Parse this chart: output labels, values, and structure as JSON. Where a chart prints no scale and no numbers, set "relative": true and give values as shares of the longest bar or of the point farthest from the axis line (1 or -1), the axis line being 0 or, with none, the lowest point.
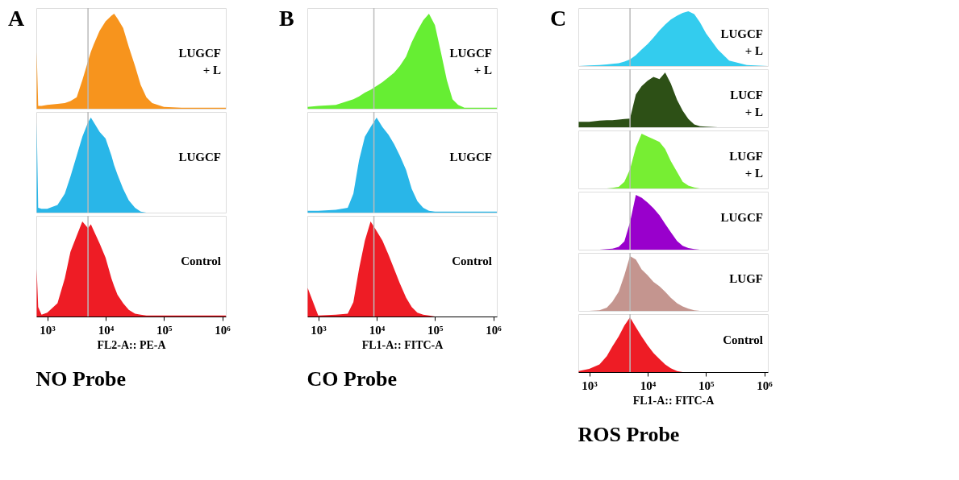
{
  "chart_data": [
    {
      "type": "area",
      "annotations": [
        "A"
      ],
      "relative": true,
      "log": "x",
      "tick_labels": false,
      "xlim": [
        650,
        1150000
      ],
      "ref_lines": [
        {
          "axis": "x",
          "value": 5000
        }
      ],
      "x": [
        660,
        700,
        800,
        1000,
        1500,
        2000,
        2500,
        3200,
        4000,
        5000,
        5600,
        6300,
        7900,
        10000,
        12600,
        14000,
        16000,
        20000,
        25000,
        32000,
        40000,
        50000,
        63000,
        100000,
        200000,
        500000,
        1000000,
        1150000
      ],
      "series": [
        {
          "name": "LUGCF + L",
          "color": "#f7941d",
          "values": [
            0.6,
            0.03,
            0.03,
            0.04,
            0.05,
            0.06,
            0.08,
            0.12,
            0.3,
            0.5,
            0.6,
            0.68,
            0.82,
            0.92,
            0.98,
            1.0,
            0.95,
            0.85,
            0.65,
            0.45,
            0.25,
            0.12,
            0.06,
            0.02,
            0.01,
            0.01,
            0.01,
            0.01
          ]
        }
      ]
    },
    {
      "type": "area",
      "relative": true,
      "log": "x",
      "tick_labels": false,
      "xlim": [
        650,
        1150000
      ],
      "ref_lines": [
        {
          "axis": "x",
          "value": 5000
        }
      ],
      "x": [
        660,
        700,
        800,
        1000,
        1500,
        2000,
        2500,
        3200,
        4000,
        5000,
        5600,
        6300,
        7900,
        10000,
        12600,
        14000,
        16000,
        20000,
        25000,
        32000,
        40000,
        50000,
        63000,
        100000,
        200000,
        500000,
        1000000,
        1150000
      ],
      "series": [
        {
          "name": "LUGCF",
          "color": "#29b6e8",
          "values": [
            0.95,
            0.05,
            0.04,
            0.04,
            0.08,
            0.2,
            0.38,
            0.6,
            0.8,
            0.95,
            1.0,
            0.95,
            0.85,
            0.78,
            0.6,
            0.5,
            0.4,
            0.25,
            0.13,
            0.05,
            0.01,
            0,
            0,
            0,
            0,
            0,
            0,
            0
          ]
        }
      ]
    },
    {
      "type": "area",
      "title": "NO Probe",
      "xlabel": "FL2-A:: PE-A",
      "relative": true,
      "log": "x",
      "xlim": [
        650,
        1150000
      ],
      "xticks": [
        {
          "value": 1000,
          "label": "10³"
        },
        {
          "value": 10000,
          "label": "10⁴"
        },
        {
          "value": 100000,
          "label": "10⁵"
        },
        {
          "value": 1000000,
          "label": "10⁶"
        }
      ],
      "ref_lines": [
        {
          "axis": "x",
          "value": 5000
        }
      ],
      "x": [
        660,
        700,
        800,
        1000,
        1500,
        2000,
        2500,
        3200,
        4000,
        5000,
        5600,
        6300,
        7900,
        10000,
        12600,
        14000,
        16000,
        20000,
        25000,
        32000,
        40000,
        50000,
        63000,
        100000,
        200000,
        500000,
        1000000,
        1150000
      ],
      "series": [
        {
          "name": "Control",
          "color": "#ee1c25",
          "values": [
            0.5,
            0.1,
            0.02,
            0.04,
            0.14,
            0.4,
            0.68,
            0.85,
            1.0,
            0.93,
            0.97,
            0.9,
            0.77,
            0.62,
            0.4,
            0.32,
            0.23,
            0.14,
            0.07,
            0.03,
            0.02,
            0.01,
            0.01,
            0.01,
            0.01,
            0.01,
            0.01,
            0.01
          ]
        }
      ]
    },
    {
      "type": "area",
      "annotations": [
        "B"
      ],
      "relative": true,
      "log": "x",
      "tick_labels": false,
      "xlim": [
        650,
        1150000
      ],
      "ref_lines": [
        {
          "axis": "x",
          "value": 9000
        }
      ],
      "x": [
        660,
        1000,
        2000,
        3200,
        4000,
        5000,
        6300,
        7900,
        10000,
        12600,
        16000,
        20000,
        25000,
        32000,
        40000,
        50000,
        63000,
        79000,
        100000,
        126000,
        160000,
        200000,
        250000,
        320000,
        500000,
        1000000,
        1150000
      ],
      "series": [
        {
          "name": "LUGCF + L",
          "color": "#66ee33",
          "values": [
            0.02,
            0.03,
            0.04,
            0.08,
            0.1,
            0.13,
            0.17,
            0.2,
            0.24,
            0.28,
            0.33,
            0.38,
            0.45,
            0.55,
            0.7,
            0.82,
            0.93,
            1.0,
            0.88,
            0.6,
            0.3,
            0.1,
            0.04,
            0.01,
            0.01,
            0.01,
            0.01
          ]
        }
      ]
    },
    {
      "type": "area",
      "relative": true,
      "log": "x",
      "tick_labels": false,
      "xlim": [
        650,
        1150000
      ],
      "ref_lines": [
        {
          "axis": "x",
          "value": 9000
        }
      ],
      "x": [
        660,
        1000,
        2000,
        3200,
        4000,
        5000,
        6300,
        7900,
        10000,
        12600,
        16000,
        20000,
        25000,
        32000,
        40000,
        50000,
        63000,
        79000,
        100000,
        126000,
        160000,
        200000,
        250000,
        320000,
        500000,
        1000000,
        1150000
      ],
      "series": [
        {
          "name": "LUGCF",
          "color": "#29b6e8",
          "values": [
            0.02,
            0.02,
            0.03,
            0.05,
            0.2,
            0.55,
            0.8,
            0.9,
            1.0,
            0.9,
            0.82,
            0.72,
            0.6,
            0.45,
            0.25,
            0.12,
            0.05,
            0.02,
            0.01,
            0.01,
            0.01,
            0.01,
            0.01,
            0.01,
            0.01,
            0.01,
            0.01
          ]
        }
      ]
    },
    {
      "type": "area",
      "title": "CO Probe",
      "xlabel": "FL1-A:: FITC-A",
      "relative": true,
      "log": "x",
      "xlim": [
        650,
        1150000
      ],
      "xticks": [
        {
          "value": 1000,
          "label": "10³"
        },
        {
          "value": 10000,
          "label": "10⁴"
        },
        {
          "value": 100000,
          "label": "10⁵"
        },
        {
          "value": 1000000,
          "label": "10⁶"
        }
      ],
      "ref_lines": [
        {
          "axis": "x",
          "value": 9000
        }
      ],
      "x": [
        660,
        1000,
        2000,
        3200,
        4000,
        5000,
        6300,
        7900,
        10000,
        12600,
        16000,
        20000,
        25000,
        32000,
        40000,
        50000,
        63000,
        79000,
        100000,
        126000,
        160000,
        200000,
        250000,
        320000,
        500000,
        1000000,
        1150000
      ],
      "series": [
        {
          "name": "Control",
          "color": "#ee1c25",
          "values": [
            0.3,
            0.01,
            0.02,
            0.03,
            0.15,
            0.5,
            0.8,
            1.0,
            0.9,
            0.8,
            0.65,
            0.5,
            0.35,
            0.2,
            0.1,
            0.04,
            0.02,
            0.01,
            0,
            0,
            0,
            0,
            0,
            0,
            0,
            0,
            0
          ]
        }
      ]
    },
    {
      "type": "area",
      "annotations": [
        "C"
      ],
      "relative": true,
      "log": "x",
      "tick_labels": false,
      "xlim": [
        650,
        1150000
      ],
      "ref_lines": [
        {
          "axis": "x",
          "value": 5000
        }
      ],
      "x": [
        660,
        1000,
        1500,
        2000,
        2500,
        3200,
        4000,
        5000,
        6300,
        7900,
        10000,
        12600,
        16000,
        20000,
        25000,
        32000,
        40000,
        50000,
        63000,
        79000,
        100000,
        160000,
        250000,
        500000,
        1150000
      ],
      "series": [
        {
          "name": "LUGCF + L",
          "color": "#33ccee",
          "values": [
            0,
            0.01,
            0.02,
            0.03,
            0.04,
            0.05,
            0.08,
            0.12,
            0.2,
            0.3,
            0.4,
            0.52,
            0.65,
            0.76,
            0.85,
            0.92,
            0.97,
            1.0,
            0.95,
            0.8,
            0.6,
            0.3,
            0.1,
            0.02,
            0
          ]
        }
      ]
    },
    {
      "type": "area",
      "relative": true,
      "log": "x",
      "tick_labels": false,
      "xlim": [
        650,
        1150000
      ],
      "ref_lines": [
        {
          "axis": "x",
          "value": 5000
        }
      ],
      "x": [
        660,
        1000,
        1500,
        2000,
        2500,
        3200,
        4000,
        5000,
        6300,
        7900,
        10000,
        12600,
        16000,
        20000,
        25000,
        32000,
        40000,
        50000,
        63000,
        79000,
        100000,
        160000,
        250000,
        500000,
        1150000
      ],
      "series": [
        {
          "name": "LUCF + L",
          "color": "#2d5016",
          "values": [
            0.1,
            0.1,
            0.12,
            0.13,
            0.13,
            0.14,
            0.15,
            0.16,
            0.6,
            0.75,
            0.85,
            0.92,
            0.88,
            1.0,
            0.8,
            0.5,
            0.3,
            0.15,
            0.05,
            0.02,
            0.01,
            0,
            0,
            0,
            0
          ]
        }
      ]
    },
    {
      "type": "area",
      "relative": true,
      "log": "x",
      "tick_labels": false,
      "xlim": [
        650,
        1150000
      ],
      "ref_lines": [
        {
          "axis": "x",
          "value": 5000
        }
      ],
      "x": [
        660,
        1000,
        1500,
        2000,
        2500,
        3200,
        4000,
        5000,
        6300,
        7900,
        10000,
        12600,
        16000,
        20000,
        25000,
        32000,
        40000,
        50000,
        63000,
        79000,
        100000,
        160000,
        250000,
        500000,
        1150000
      ],
      "series": [
        {
          "name": "LUGF + L",
          "color": "#77ee33",
          "values": [
            0,
            0,
            0,
            0,
            0.01,
            0.03,
            0.12,
            0.35,
            0.75,
            1.0,
            0.95,
            0.9,
            0.85,
            0.72,
            0.5,
            0.3,
            0.12,
            0.05,
            0.02,
            0,
            0,
            0,
            0,
            0,
            0
          ]
        }
      ]
    },
    {
      "type": "area",
      "relative": true,
      "log": "x",
      "tick_labels": false,
      "xlim": [
        650,
        1150000
      ],
      "ref_lines": [
        {
          "axis": "x",
          "value": 5000
        }
      ],
      "x": [
        660,
        1000,
        1500,
        2000,
        2500,
        3200,
        4000,
        5000,
        6300,
        7900,
        10000,
        12600,
        16000,
        20000,
        25000,
        32000,
        40000,
        50000,
        63000,
        79000,
        100000,
        160000,
        250000,
        500000,
        1150000
      ],
      "series": [
        {
          "name": "LUGCF",
          "color": "#9900cc",
          "values": [
            0,
            0,
            0,
            0.01,
            0.02,
            0.05,
            0.15,
            0.5,
            1.0,
            0.95,
            0.86,
            0.76,
            0.63,
            0.47,
            0.32,
            0.16,
            0.07,
            0.03,
            0.01,
            0,
            0,
            0,
            0,
            0,
            0
          ]
        }
      ]
    },
    {
      "type": "area",
      "relative": true,
      "log": "x",
      "tick_labels": false,
      "xlim": [
        650,
        1150000
      ],
      "ref_lines": [
        {
          "axis": "x",
          "value": 5000
        }
      ],
      "x": [
        660,
        1000,
        1500,
        2000,
        2500,
        3200,
        4000,
        5000,
        6300,
        7900,
        10000,
        12600,
        16000,
        20000,
        25000,
        32000,
        40000,
        50000,
        63000,
        79000,
        100000,
        160000,
        250000,
        500000,
        1150000
      ],
      "series": [
        {
          "name": "LUGF",
          "color": "#c4958f",
          "values": [
            0,
            0,
            0.01,
            0.06,
            0.17,
            0.35,
            0.65,
            1.0,
            0.94,
            0.76,
            0.65,
            0.53,
            0.45,
            0.35,
            0.24,
            0.14,
            0.08,
            0.04,
            0.01,
            0,
            0,
            0,
            0,
            0,
            0
          ]
        }
      ]
    },
    {
      "type": "area",
      "title": "ROS Probe",
      "xlabel": "FL1-A:: FITC-A",
      "relative": true,
      "log": "x",
      "xlim": [
        650,
        1150000
      ],
      "xticks": [
        {
          "value": 1000,
          "label": "10³"
        },
        {
          "value": 10000,
          "label": "10⁴"
        },
        {
          "value": 100000,
          "label": "10⁵"
        },
        {
          "value": 1000000,
          "label": "10⁶"
        }
      ],
      "ref_lines": [
        {
          "axis": "x",
          "value": 5000
        }
      ],
      "x": [
        660,
        1000,
        1500,
        2000,
        2500,
        3200,
        4000,
        5000,
        6300,
        7900,
        10000,
        12600,
        16000,
        20000,
        25000,
        32000,
        40000,
        50000,
        63000,
        79000,
        100000,
        160000,
        250000,
        500000,
        1150000
      ],
      "series": [
        {
          "name": "Control",
          "color": "#ee1c25",
          "values": [
            0.02,
            0.06,
            0.14,
            0.29,
            0.47,
            0.65,
            0.85,
            1.0,
            0.82,
            0.65,
            0.49,
            0.35,
            0.24,
            0.14,
            0.07,
            0.02,
            0,
            0,
            0,
            0,
            0,
            0,
            0,
            0,
            0
          ]
        }
      ]
    }
  ]
}
